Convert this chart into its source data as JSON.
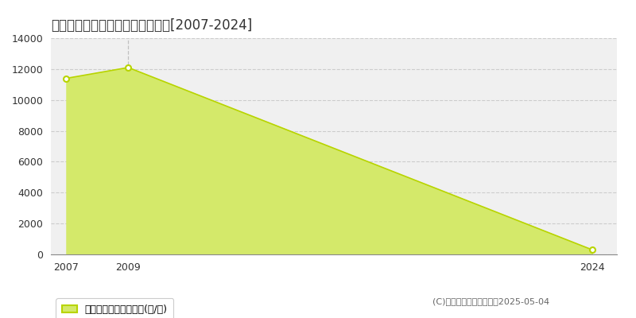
{
  "title": "員弁郡東員町中上　農地価格推移[2007-2024]",
  "years": [
    2007,
    2009,
    2024
  ],
  "values": [
    11400,
    12100,
    300
  ],
  "line_color": "#b8d400",
  "fill_color": "#d4e96a",
  "fill_alpha": 1.0,
  "ylim": [
    0,
    14000
  ],
  "yticks": [
    0,
    2000,
    4000,
    6000,
    8000,
    10000,
    12000,
    14000
  ],
  "xlim_min": 2006.5,
  "xlim_max": 2024.8,
  "xticks": [
    2007,
    2009,
    2024
  ],
  "grid_color": "#cccccc",
  "bg_color": "#f0f0f0",
  "legend_label": "農地価格　平均坪単価(円/坪)",
  "copyright": "(C)土地価格ドットコム　2025-05-04",
  "vline_x": 2009,
  "vline_color": "#bbbbbb"
}
